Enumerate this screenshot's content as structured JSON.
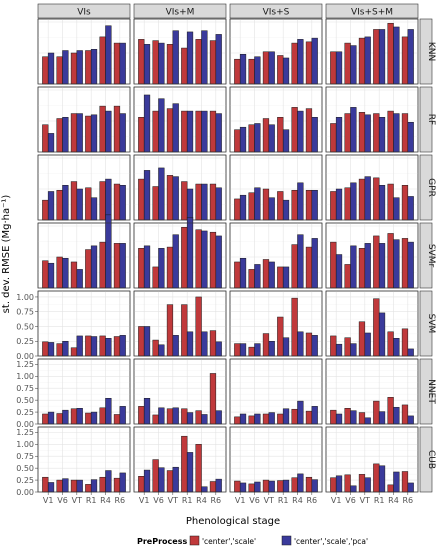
{
  "chart_data": {
    "type": "bar",
    "facet_columns": [
      "VIs",
      "VIs+M",
      "VIs+S",
      "VIs+S+M"
    ],
    "facet_rows": [
      "KNN",
      "RF",
      "GPR",
      "SVMr",
      "SVM",
      "NNET",
      "CUB"
    ],
    "categories": [
      "V1",
      "V6",
      "VT",
      "R1",
      "R4",
      "R6"
    ],
    "xlabel": "Phenological stage",
    "ylabel": "st. dev. RMSE (Mg·ha⁻¹)",
    "yticks": [
      {
        "value": 0.0,
        "label": "0.00"
      },
      {
        "value": 0.25,
        "label": "0.25"
      },
      {
        "value": 0.5,
        "label": "0.50"
      },
      {
        "value": 0.75,
        "label": "0.75"
      },
      {
        "value": 1.0,
        "label": "1.00"
      },
      {
        "value": 1.25,
        "label": "1.25"
      }
    ],
    "ylim_by_row": {
      "KNN": [
        0,
        0.5
      ],
      "RF": [
        0,
        0.5
      ],
      "GPR": [
        0,
        0.5
      ],
      "SVMr": [
        0,
        0.5
      ],
      "SVM": [
        0,
        1.05
      ],
      "NNET": [
        0,
        1.3
      ],
      "CUB": [
        0,
        1.3
      ]
    },
    "yticks_by_row": {
      "KNN": [],
      "RF": [],
      "GPR": [],
      "SVMr": [],
      "SVM": [
        0,
        0.25,
        0.5,
        0.75,
        1.0
      ],
      "NNET": [
        0,
        0.25,
        0.5,
        0.75,
        1.0,
        1.25
      ],
      "CUB": [
        0,
        0.25,
        0.5,
        0.75,
        1.0,
        1.25
      ]
    },
    "legend": {
      "title": "PreProcess",
      "position": "bottom",
      "items": [
        {
          "label": "'center','scale'",
          "color": "#c0393b"
        },
        {
          "label": "'center','scale','pca'",
          "color": "#3a3a9b"
        }
      ]
    },
    "grid": true,
    "series_colors": [
      "#c0393b",
      "#3a3a9b"
    ],
    "values": {
      "KNN": {
        "VIs": [
          [
            0.22,
            0.25
          ],
          [
            0.22,
            0.27
          ],
          [
            0.25,
            0.27
          ],
          [
            0.27,
            0.28
          ],
          [
            0.38,
            0.47
          ],
          [
            0.33,
            0.33
          ]
        ],
        "VIs+M": [
          [
            0.36,
            0.32
          ],
          [
            0.35,
            0.33
          ],
          [
            0.32,
            0.43
          ],
          [
            0.29,
            0.42
          ],
          [
            0.36,
            0.43
          ],
          [
            0.35,
            0.4
          ]
        ],
        "VIs+S": [
          [
            0.2,
            0.24
          ],
          [
            0.2,
            0.22
          ],
          [
            0.26,
            0.26
          ],
          [
            0.23,
            0.21
          ],
          [
            0.33,
            0.36
          ],
          [
            0.34,
            0.37
          ]
        ],
        "VIs+S+M": [
          [
            0.26,
            0.26
          ],
          [
            0.33,
            0.31
          ],
          [
            0.37,
            0.38
          ],
          [
            0.44,
            0.44
          ],
          [
            0.49,
            0.46
          ],
          [
            0.38,
            0.44
          ]
        ]
      },
      "RF": {
        "VIs": [
          [
            0.22,
            0.15
          ],
          [
            0.27,
            0.28
          ],
          [
            0.31,
            0.31
          ],
          [
            0.29,
            0.3
          ],
          [
            0.37,
            0.33
          ],
          [
            0.37,
            0.31
          ]
        ],
        "VIs+M": [
          [
            0.28,
            0.46
          ],
          [
            0.33,
            0.43
          ],
          [
            0.35,
            0.39
          ],
          [
            0.33,
            0.33
          ],
          [
            0.33,
            0.33
          ],
          [
            0.33,
            0.31
          ]
        ],
        "VIs+S": [
          [
            0.18,
            0.2
          ],
          [
            0.22,
            0.23
          ],
          [
            0.27,
            0.22
          ],
          [
            0.28,
            0.18
          ],
          [
            0.36,
            0.33
          ],
          [
            0.35,
            0.28
          ]
        ],
        "VIs+S+M": [
          [
            0.23,
            0.28
          ],
          [
            0.31,
            0.36
          ],
          [
            0.32,
            0.3
          ],
          [
            0.31,
            0.28
          ],
          [
            0.33,
            0.31
          ],
          [
            0.31,
            0.24
          ]
        ]
      },
      "GPR": {
        "VIs": [
          [
            0.16,
            0.23
          ],
          [
            0.24,
            0.28
          ],
          [
            0.31,
            0.25
          ],
          [
            0.26,
            0.18
          ],
          [
            0.31,
            0.33
          ],
          [
            0.29,
            0.28
          ]
        ],
        "VIs+M": [
          [
            0.33,
            0.4
          ],
          [
            0.27,
            0.42
          ],
          [
            0.36,
            0.35
          ],
          [
            0.31,
            0.25
          ],
          [
            0.29,
            0.29
          ],
          [
            0.29,
            0.26
          ]
        ],
        "VIs+S": [
          [
            0.17,
            0.2
          ],
          [
            0.22,
            0.26
          ],
          [
            0.25,
            0.18
          ],
          [
            0.23,
            0.16
          ],
          [
            0.24,
            0.3
          ],
          [
            0.24,
            0.24
          ]
        ],
        "VIs+S+M": [
          [
            0.23,
            0.25
          ],
          [
            0.26,
            0.3
          ],
          [
            0.33,
            0.35
          ],
          [
            0.34,
            0.28
          ],
          [
            0.29,
            0.18
          ],
          [
            0.28,
            0.19
          ]
        ]
      },
      "SVMr": {
        "VIs": [
          [
            0.22,
            0.2
          ],
          [
            0.25,
            0.24
          ],
          [
            0.21,
            0.15
          ],
          [
            0.31,
            0.34
          ],
          [
            0.37,
            0.59
          ],
          [
            0.36,
            0.36
          ]
        ],
        "VIs+M": [
          [
            0.32,
            0.34
          ],
          [
            0.17,
            0.32
          ],
          [
            0.33,
            0.43
          ],
          [
            0.49,
            0.57
          ],
          [
            0.47,
            0.46
          ],
          [
            0.45,
            0.42
          ]
        ],
        "VIs+S": [
          [
            0.21,
            0.24
          ],
          [
            0.15,
            0.19
          ],
          [
            0.23,
            0.21
          ],
          [
            0.17,
            0.17
          ],
          [
            0.35,
            0.43
          ],
          [
            0.33,
            0.4
          ]
        ],
        "VIs+S+M": [
          [
            0.37,
            0.27
          ],
          [
            0.19,
            0.34
          ],
          [
            0.32,
            0.36
          ],
          [
            0.42,
            0.36
          ],
          [
            0.44,
            0.39
          ],
          [
            0.4,
            0.37
          ]
        ]
      },
      "SVM": {
        "VIs": [
          [
            0.24,
            0.23
          ],
          [
            0.21,
            0.25
          ],
          [
            0.14,
            0.34
          ],
          [
            0.34,
            0.33
          ],
          [
            0.34,
            0.3
          ],
          [
            0.33,
            0.35
          ]
        ],
        "VIs+M": [
          [
            0.5,
            0.5
          ],
          [
            0.27,
            0.19
          ],
          [
            0.87,
            0.35
          ],
          [
            0.87,
            0.41
          ],
          [
            1.0,
            0.41
          ],
          [
            0.43,
            0.24
          ]
        ],
        "VIs+S": [
          [
            0.21,
            0.21
          ],
          [
            0.15,
            0.21
          ],
          [
            0.38,
            0.25
          ],
          [
            0.66,
            0.31
          ],
          [
            0.98,
            0.41
          ],
          [
            0.39,
            0.35
          ]
        ],
        "VIs+S+M": [
          [
            0.34,
            0.2
          ],
          [
            0.31,
            0.21
          ],
          [
            0.58,
            0.39
          ],
          [
            0.97,
            0.73
          ],
          [
            0.41,
            0.3
          ],
          [
            0.46,
            0.12
          ]
        ]
      },
      "NNET": {
        "VIs": [
          [
            0.21,
            0.25
          ],
          [
            0.22,
            0.29
          ],
          [
            0.32,
            0.33
          ],
          [
            0.23,
            0.25
          ],
          [
            0.34,
            0.54
          ],
          [
            0.2,
            0.37
          ]
        ],
        "VIs+M": [
          [
            0.37,
            0.54
          ],
          [
            0.19,
            0.34
          ],
          [
            0.32,
            0.34
          ],
          [
            0.32,
            0.24
          ],
          [
            0.28,
            0.2
          ],
          [
            1.06,
            0.28
          ]
        ],
        "VIs+S": [
          [
            0.15,
            0.21
          ],
          [
            0.17,
            0.21
          ],
          [
            0.21,
            0.24
          ],
          [
            0.21,
            0.32
          ],
          [
            0.31,
            0.48
          ],
          [
            0.27,
            0.37
          ]
        ],
        "VIs+S+M": [
          [
            0.29,
            0.21
          ],
          [
            0.33,
            0.28
          ],
          [
            0.24,
            0.13
          ],
          [
            0.48,
            0.26
          ],
          [
            0.56,
            0.35
          ],
          [
            0.4,
            0.17
          ]
        ]
      },
      "CUB": {
        "VIs": [
          [
            0.31,
            0.2
          ],
          [
            0.25,
            0.28
          ],
          [
            0.25,
            0.25
          ],
          [
            0.16,
            0.26
          ],
          [
            0.31,
            0.45
          ],
          [
            0.29,
            0.4
          ]
        ],
        "VIs+M": [
          [
            0.33,
            0.46
          ],
          [
            0.68,
            0.51
          ],
          [
            0.45,
            0.52
          ],
          [
            1.17,
            0.83
          ],
          [
            1.0,
            0.11
          ],
          [
            0.22,
            0.27
          ]
        ],
        "VIs+S": [
          [
            0.23,
            0.19
          ],
          [
            0.17,
            0.21
          ],
          [
            0.25,
            0.23
          ],
          [
            0.24,
            0.25
          ],
          [
            0.3,
            0.38
          ],
          [
            0.31,
            0.26
          ]
        ],
        "VIs+S+M": [
          [
            0.3,
            0.34
          ],
          [
            0.36,
            0.13
          ],
          [
            0.37,
            0.3
          ],
          [
            0.59,
            0.55
          ],
          [
            0.15,
            0.42
          ],
          [
            0.43,
            0.19
          ]
        ]
      }
    }
  }
}
